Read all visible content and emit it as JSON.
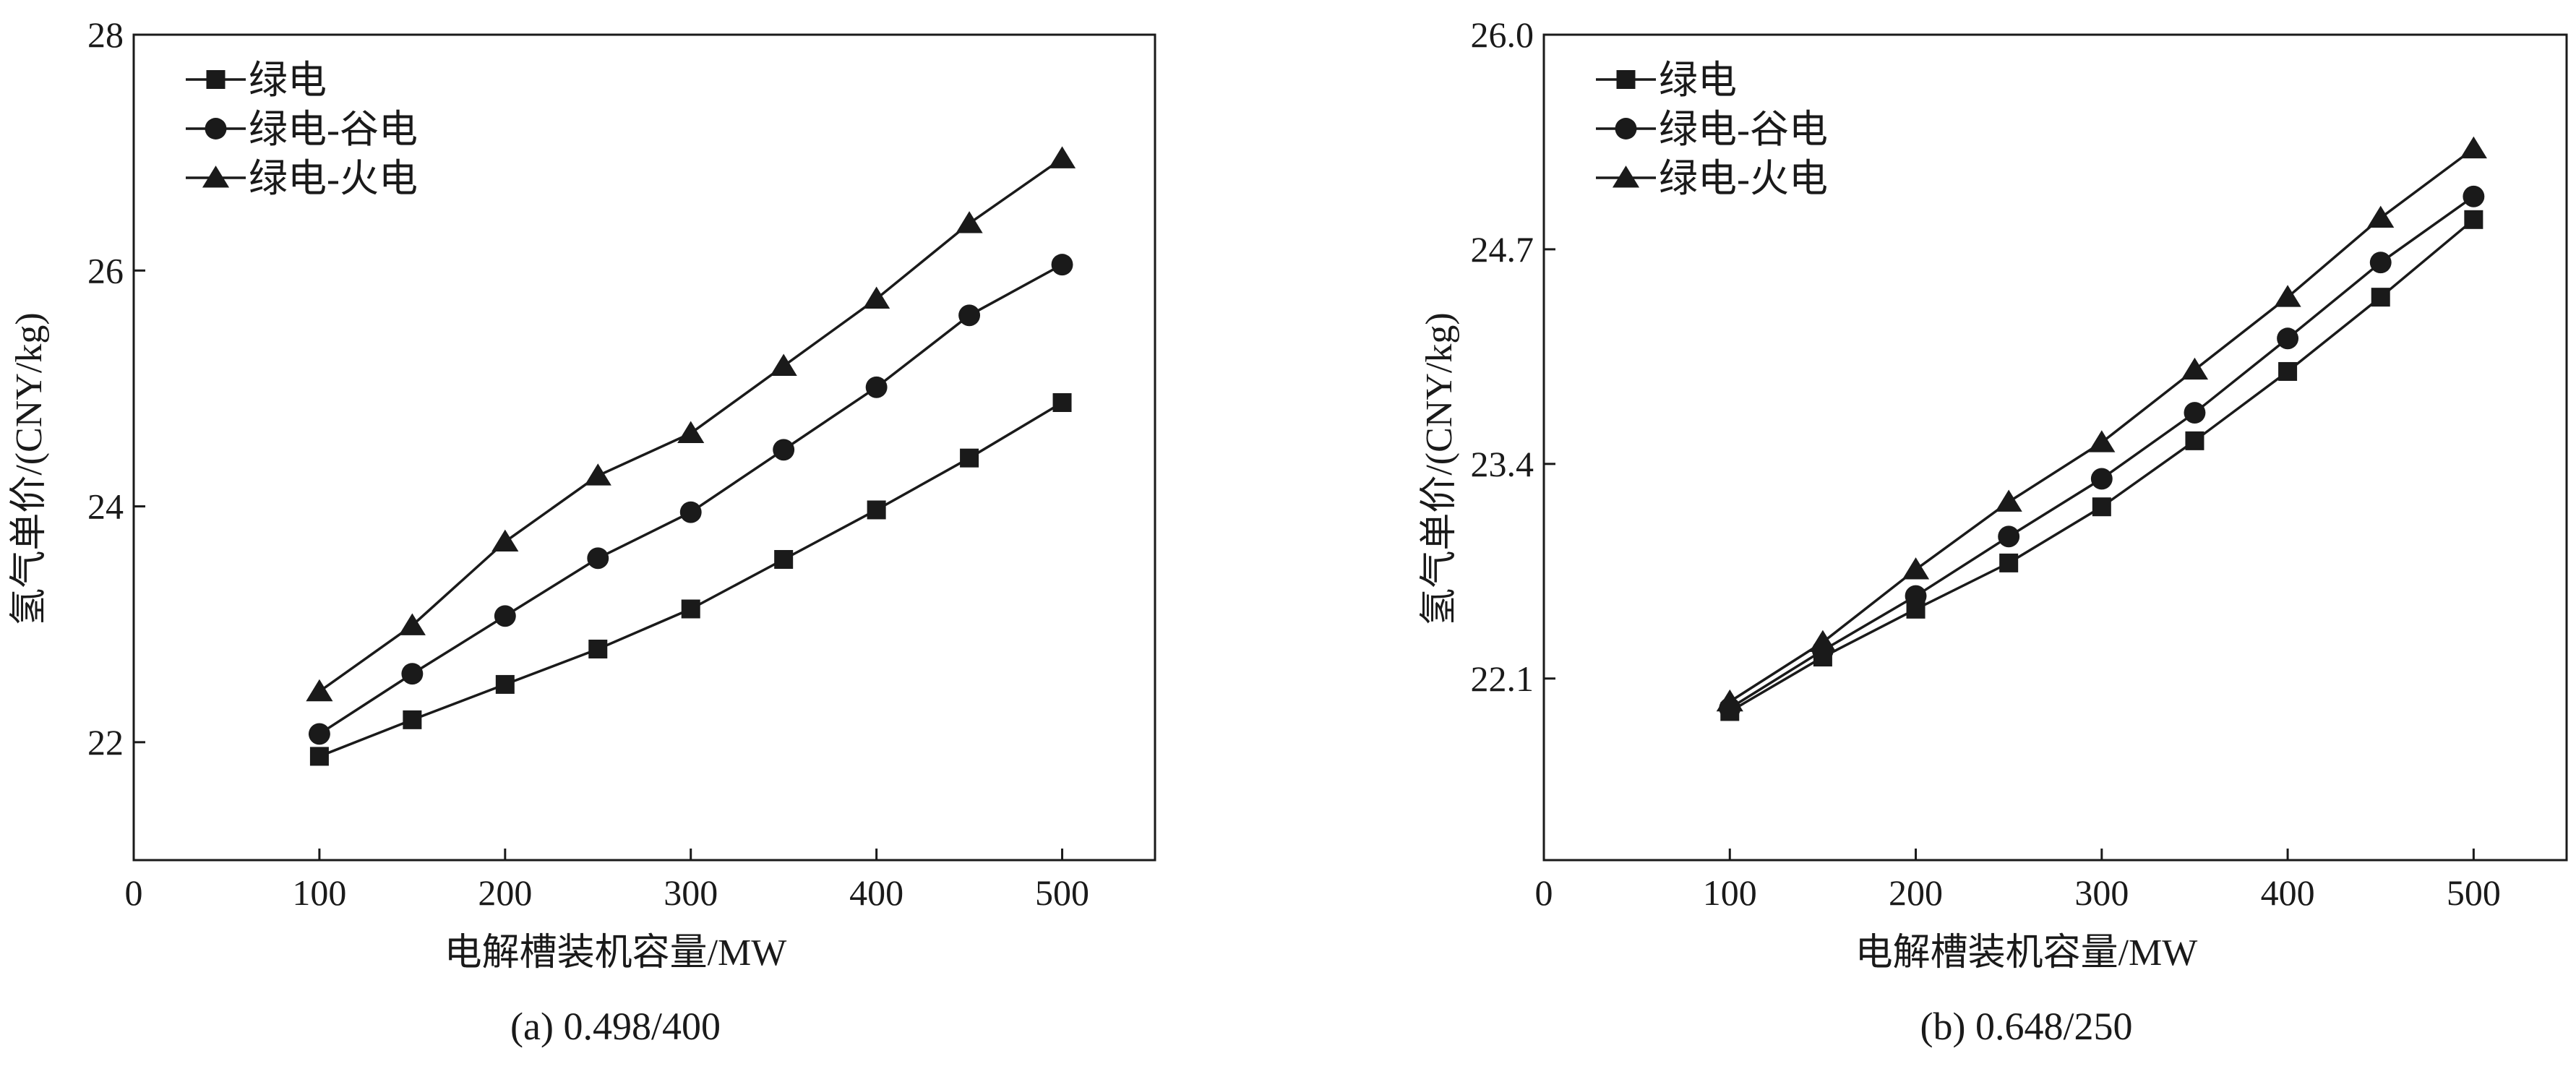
{
  "chart_data": [
    {
      "type": "line",
      "caption": "(a) 0.498/400",
      "xlabel": "电解槽装机容量/MW",
      "ylabel": "氢气单价/(CNY/kg)",
      "xlim": [
        0,
        550
      ],
      "ylim": [
        21,
        28
      ],
      "x_ticks": [
        0,
        100,
        200,
        300,
        400,
        500
      ],
      "x_tick_labels": [
        "0",
        "100",
        "200",
        "300",
        "400",
        "500"
      ],
      "y_ticks": [
        22,
        24,
        26,
        28
      ],
      "y_tick_labels": [
        "22",
        "24",
        "26",
        "28"
      ],
      "grid": false,
      "legend_position": "top-left",
      "x": [
        100,
        150,
        200,
        250,
        300,
        350,
        400,
        450,
        500
      ],
      "series": [
        {
          "name": "绿电",
          "marker": "square",
          "values": [
            21.88,
            22.19,
            22.49,
            22.79,
            23.13,
            23.55,
            23.97,
            24.41,
            24.88
          ]
        },
        {
          "name": "绿电-谷电",
          "marker": "circle",
          "values": [
            22.07,
            22.58,
            23.07,
            23.56,
            23.95,
            24.48,
            25.01,
            25.62,
            26.05
          ]
        },
        {
          "name": "绿电-火电",
          "marker": "triangle",
          "values": [
            22.43,
            22.99,
            23.7,
            24.26,
            24.62,
            25.19,
            25.76,
            26.4,
            26.95
          ]
        }
      ]
    },
    {
      "type": "line",
      "caption": "(b) 0.648/250",
      "xlabel": "电解槽装机容量/MW",
      "ylabel": "氢气单价/(CNY/kg)",
      "xlim": [
        0,
        550
      ],
      "ylim": [
        21.0,
        26.0
      ],
      "x_ticks": [
        0,
        100,
        200,
        300,
        400,
        500
      ],
      "x_tick_labels": [
        "0",
        "100",
        "200",
        "300",
        "400",
        "500"
      ],
      "y_ticks": [
        22.1,
        23.4,
        24.7,
        26.0
      ],
      "y_tick_labels": [
        "22.1",
        "23.4",
        "24.7",
        "26.0"
      ],
      "grid": false,
      "legend_position": "top-left",
      "x": [
        100,
        150,
        200,
        250,
        300,
        350,
        400,
        450,
        500
      ],
      "series": [
        {
          "name": "绿电",
          "marker": "square",
          "values": [
            21.9,
            22.23,
            22.52,
            22.8,
            23.14,
            23.54,
            23.96,
            24.41,
            24.88
          ]
        },
        {
          "name": "绿电-谷电",
          "marker": "circle",
          "values": [
            21.92,
            22.27,
            22.6,
            22.96,
            23.31,
            23.71,
            24.16,
            24.62,
            25.02
          ]
        },
        {
          "name": "绿电-火电",
          "marker": "triangle",
          "values": [
            21.96,
            22.32,
            22.76,
            23.17,
            23.53,
            23.97,
            24.41,
            24.89,
            25.31
          ]
        }
      ]
    }
  ],
  "colors": {
    "ink": "#1a1a1a",
    "background": "#ffffff"
  }
}
